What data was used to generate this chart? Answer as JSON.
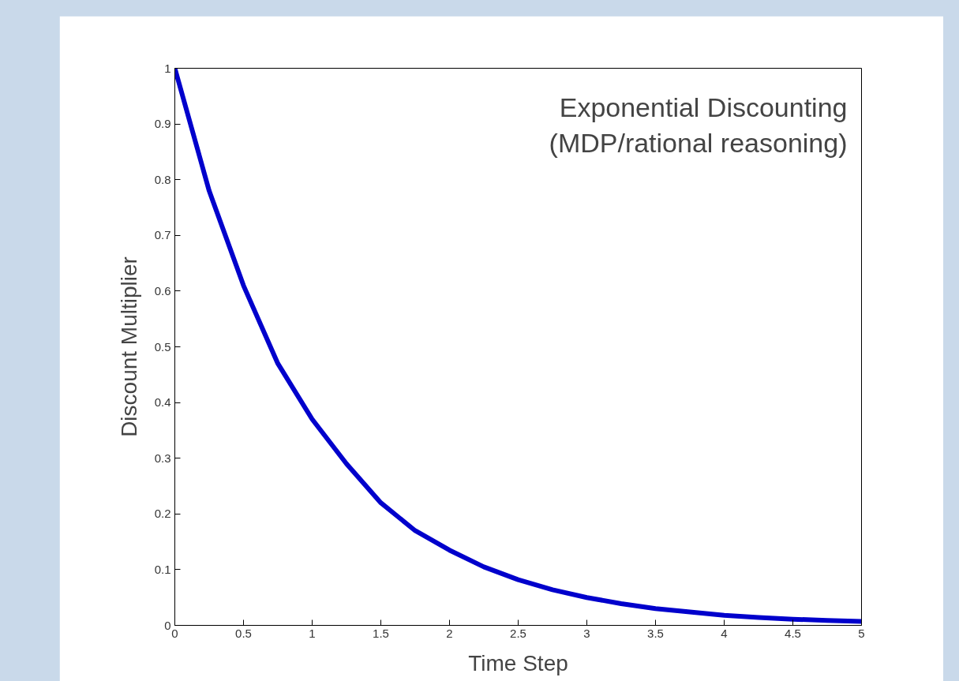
{
  "chart_data": {
    "type": "line",
    "xlabel": "Time Step",
    "ylabel": "Discount Multiplier",
    "annotations": [
      "Exponential Discounting\n(MDP/rational reasoning)"
    ],
    "x": [
      0,
      0.25,
      0.5,
      0.75,
      1,
      1.25,
      1.5,
      1.75,
      2,
      2.25,
      2.5,
      2.75,
      3,
      3.25,
      3.5,
      3.75,
      4,
      4.25,
      4.5,
      4.75,
      5
    ],
    "series": [
      {
        "color": "#0000cc",
        "values": [
          1,
          0.78,
          0.61,
          0.47,
          0.37,
          0.29,
          0.22,
          0.17,
          0.135,
          0.105,
          0.082,
          0.064,
          0.05,
          0.039,
          0.03,
          0.024,
          0.018,
          0.014,
          0.011,
          0.009,
          0.007
        ]
      }
    ],
    "xlim": [
      0,
      5
    ],
    "ylim": [
      0,
      1
    ],
    "xticks": [
      0,
      0.5,
      1,
      1.5,
      2,
      2.5,
      3,
      3.5,
      4,
      4.5,
      5
    ],
    "yticks": [
      0,
      0.1,
      0.2,
      0.3,
      0.4,
      0.5,
      0.6,
      0.7,
      0.8,
      0.9,
      1
    ],
    "grid": false,
    "marker": "none",
    "line_style": "solid"
  }
}
